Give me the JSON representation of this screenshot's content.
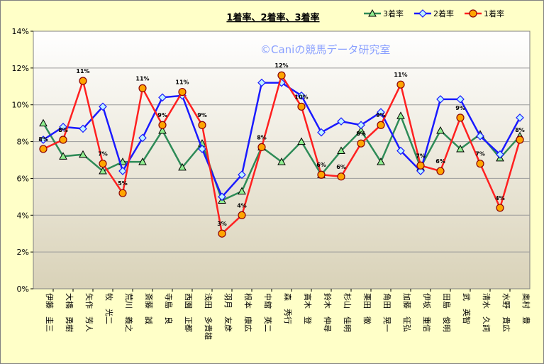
{
  "chart_data": {
    "type": "line",
    "title": "1着率、2着率、3着率",
    "watermark": "©Caniの競馬データ研究室",
    "ylim": [
      0,
      14
    ],
    "ytick_labels": [
      "0%",
      "2%",
      "4%",
      "6%",
      "8%",
      "10%",
      "12%",
      "14%"
    ],
    "grid": true,
    "legend_position": "top-right",
    "categories": [
      "伊藤　圭三",
      "大橋　勇樹",
      "矢作　芳人",
      "牧　光二",
      "荒川　義之",
      "斎藤　誠",
      "寺島　良",
      "西園　正都",
      "浅田　多貴雄",
      "羽月　友彦",
      "根本　康広",
      "中舘　英二",
      "森　秀行",
      "高木　登",
      "鈴木　伸尋",
      "杉山　佳明",
      "栗田　徹",
      "角田　晃一",
      "加藤　征弘",
      "伊坂　重信",
      "田島　俊明",
      "武　英智",
      "清水　久詞",
      "水野　貴広",
      "奥村　豊"
    ],
    "series": [
      {
        "name": "3着率",
        "color": "#2e8b57",
        "marker": "triangle",
        "values": [
          9.0,
          7.2,
          7.3,
          6.4,
          6.9,
          6.9,
          8.6,
          6.6,
          7.9,
          4.8,
          5.3,
          7.7,
          6.9,
          8.0,
          6.2,
          7.5,
          8.6,
          6.9,
          9.4,
          6.6,
          8.6,
          7.6,
          8.4,
          7.1,
          8.3
        ]
      },
      {
        "name": "2着率",
        "color": "#1a1aff",
        "marker": "diamond",
        "values": [
          8.1,
          8.8,
          8.7,
          9.9,
          6.4,
          8.2,
          10.4,
          10.5,
          7.6,
          5.0,
          6.2,
          11.2,
          11.2,
          10.5,
          8.5,
          9.1,
          8.9,
          9.6,
          7.5,
          6.4,
          10.3,
          10.3,
          8.3,
          7.3,
          9.3
        ]
      },
      {
        "name": "1着率",
        "color": "#ff2020",
        "marker": "circle",
        "values": [
          7.6,
          8.1,
          11.3,
          6.8,
          5.2,
          10.9,
          8.9,
          10.7,
          8.9,
          3.0,
          4.0,
          7.7,
          11.6,
          9.9,
          6.2,
          6.1,
          7.9,
          8.9,
          11.1,
          6.7,
          6.4,
          9.3,
          6.8,
          4.4,
          8.1
        ],
        "labels": [
          "8%",
          "8%",
          "11%",
          "7%",
          "5%",
          "11%",
          "9%",
          "11%",
          "9%",
          "3%",
          "4%",
          "8%",
          "12%",
          "10%",
          "6%",
          "6%",
          "8%",
          "9%",
          "11%",
          "7%",
          "6%",
          "9%",
          "7%",
          "4%",
          "8%"
        ]
      }
    ]
  }
}
